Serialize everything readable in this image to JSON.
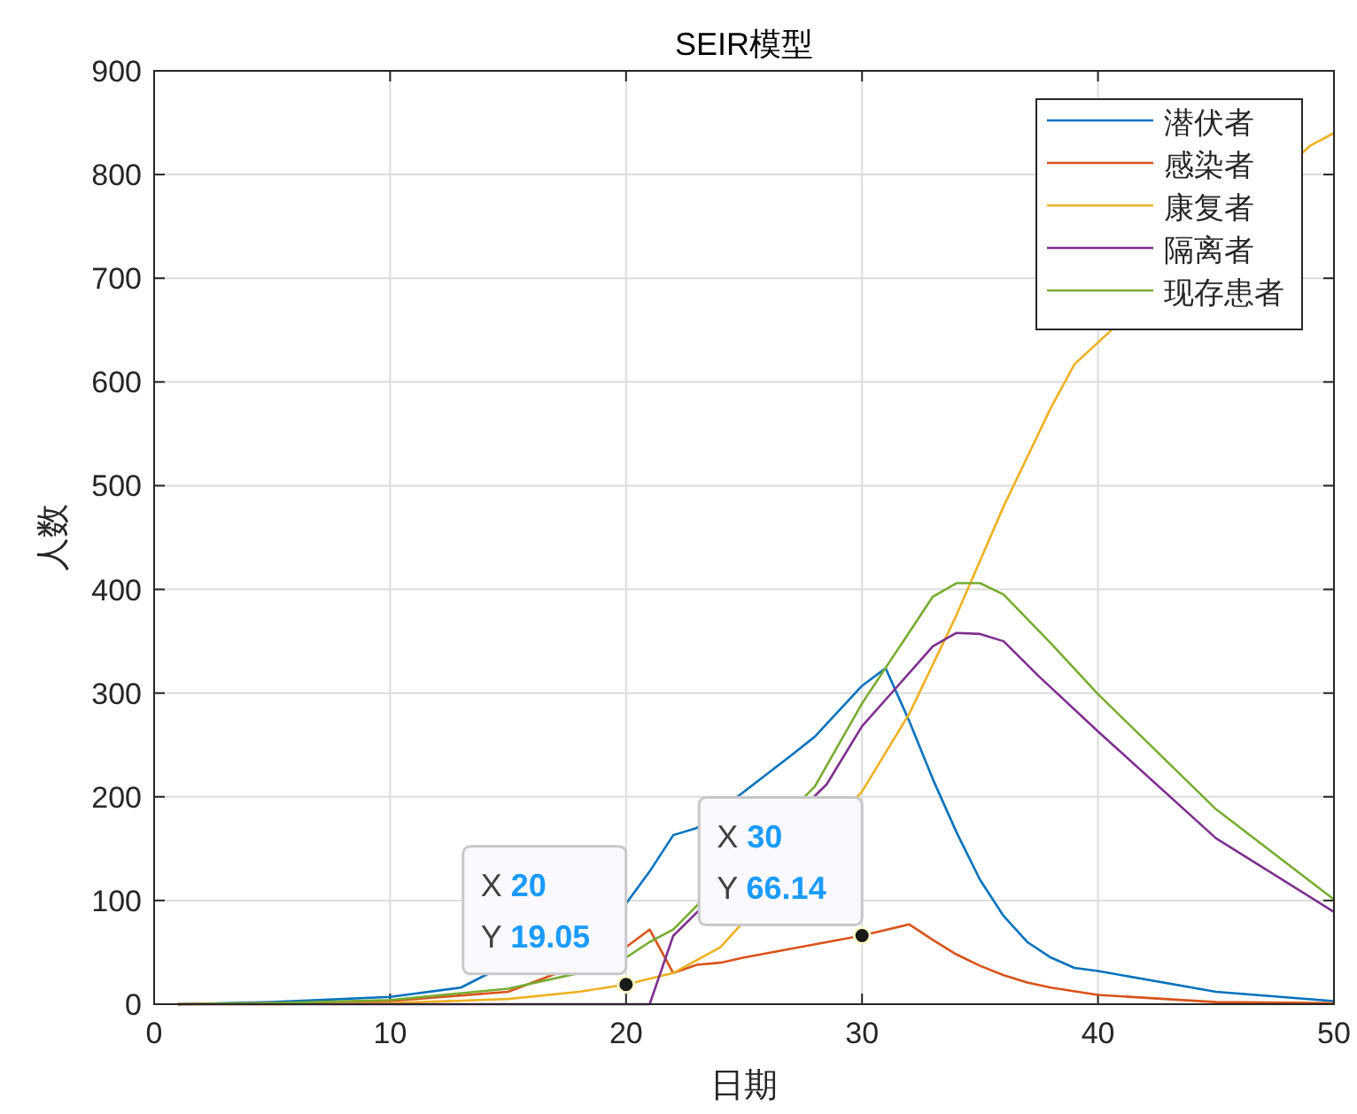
{
  "chart_data": {
    "type": "line",
    "title": "SEIR模型",
    "xlabel": "日期",
    "ylabel": "人数",
    "xlim": [
      0,
      50
    ],
    "xticks": [
      0,
      10,
      20,
      30,
      40,
      50
    ],
    "ylim": [
      0,
      900
    ],
    "yticks": [
      0,
      100,
      200,
      300,
      400,
      500,
      600,
      700,
      800,
      900
    ],
    "grid": true,
    "legend": "top right",
    "marker": "none",
    "line_style": "solid",
    "series": [
      {
        "name": "潜伏者",
        "color": "#0072bd",
        "x": [
          1,
          5,
          10,
          13,
          20,
          21,
          22,
          23,
          25,
          27,
          28,
          30,
          31,
          32,
          33,
          34,
          35,
          36,
          37,
          38,
          39,
          40,
          45,
          50
        ],
        "values": [
          0,
          2,
          7,
          16,
          97,
          128,
          163,
          170,
          205,
          240,
          258,
          307,
          324,
          273,
          217,
          166,
          120,
          85,
          60,
          45,
          35,
          32,
          12,
          3
        ]
      },
      {
        "name": "感染者",
        "color": "#d95319",
        "x": [
          1,
          5,
          10,
          15,
          20,
          21,
          22,
          23,
          24,
          25,
          30,
          32,
          33,
          34,
          35,
          36,
          37,
          38,
          40,
          45,
          50
        ],
        "values": [
          0,
          1,
          3,
          12,
          55,
          72,
          30,
          38,
          40,
          45,
          66.14,
          77,
          62,
          48,
          37,
          28,
          21,
          16,
          9,
          2,
          1
        ]
      },
      {
        "name": "康复者",
        "color": "#edb120",
        "x": [
          1,
          5,
          10,
          15,
          18,
          20,
          22,
          24,
          30,
          32,
          34,
          36,
          38,
          39,
          49,
          50
        ],
        "values": [
          0,
          0,
          1,
          5,
          12,
          19.05,
          30,
          55,
          205,
          280,
          375,
          480,
          575,
          617,
          828,
          840
        ]
      },
      {
        "name": "隔离者",
        "color": "#7e2f8e",
        "x": [
          1,
          21,
          22,
          28.5,
          30,
          33,
          34,
          35,
          36,
          37.5,
          40,
          45,
          50
        ],
        "values": [
          0,
          0,
          66,
          212,
          268,
          345,
          358,
          357,
          350,
          316,
          263,
          160,
          89
        ]
      },
      {
        "name": "现存患者",
        "color": "#77ac30",
        "x": [
          1,
          5,
          10,
          15,
          18,
          20,
          21,
          22,
          28,
          30,
          33,
          34,
          35,
          36,
          38,
          40,
          45,
          50
        ],
        "values": [
          0,
          1,
          4,
          15,
          30,
          45,
          60,
          72,
          210,
          290,
          393,
          406,
          406,
          395,
          348,
          299,
          188,
          101
        ]
      }
    ],
    "annotations": [
      {
        "text": "X 20\nY 19.05",
        "x": 20,
        "y": 19.05
      },
      {
        "text": "X 30\nY 66.14",
        "x": 30,
        "y": 66.14
      }
    ]
  }
}
